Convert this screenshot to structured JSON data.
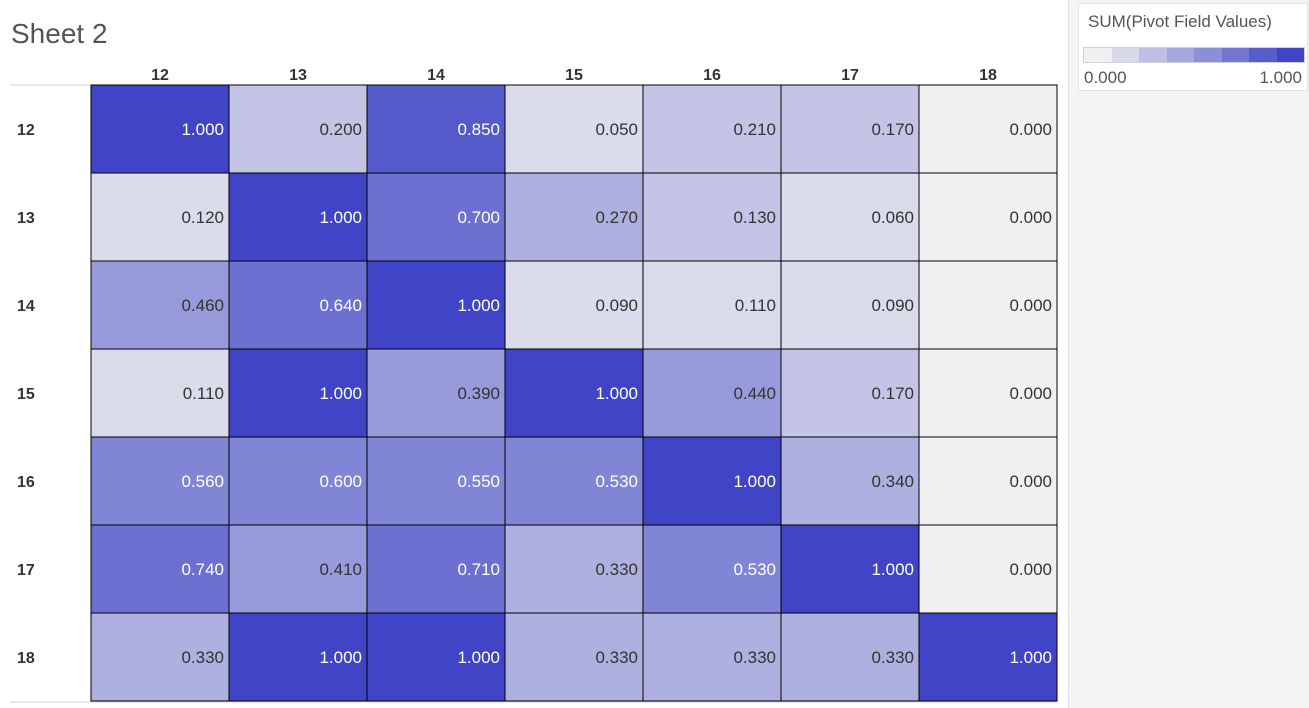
{
  "sheet": {
    "title": "Sheet 2"
  },
  "legend": {
    "title": "SUM(Pivot Field Values)",
    "min_label": "0.000",
    "max_label": "1.000",
    "steps": 8
  },
  "colors": {
    "low": "#f0f0f0",
    "high": "#3f45c6",
    "text_dark": "#333333",
    "text_light": "#ffffff",
    "grid": "#000000"
  },
  "chart_data": {
    "type": "heatmap",
    "title": "",
    "x_categories": [
      "12",
      "13",
      "14",
      "15",
      "16",
      "17",
      "18"
    ],
    "y_categories": [
      "12",
      "13",
      "14",
      "15",
      "16",
      "17",
      "18"
    ],
    "value_range": [
      0,
      1
    ],
    "values": [
      [
        1.0,
        0.2,
        0.85,
        0.05,
        0.21,
        0.17,
        0.0
      ],
      [
        0.12,
        1.0,
        0.7,
        0.27,
        0.13,
        0.06,
        0.0
      ],
      [
        0.46,
        0.64,
        1.0,
        0.09,
        0.11,
        0.09,
        0.0
      ],
      [
        0.11,
        1.0,
        0.39,
        1.0,
        0.44,
        0.17,
        0.0
      ],
      [
        0.56,
        0.6,
        0.55,
        0.53,
        1.0,
        0.34,
        0.0
      ],
      [
        0.74,
        0.41,
        0.71,
        0.33,
        0.53,
        1.0,
        0.0
      ],
      [
        0.33,
        1.0,
        1.0,
        0.33,
        0.33,
        0.33,
        1.0
      ]
    ]
  }
}
